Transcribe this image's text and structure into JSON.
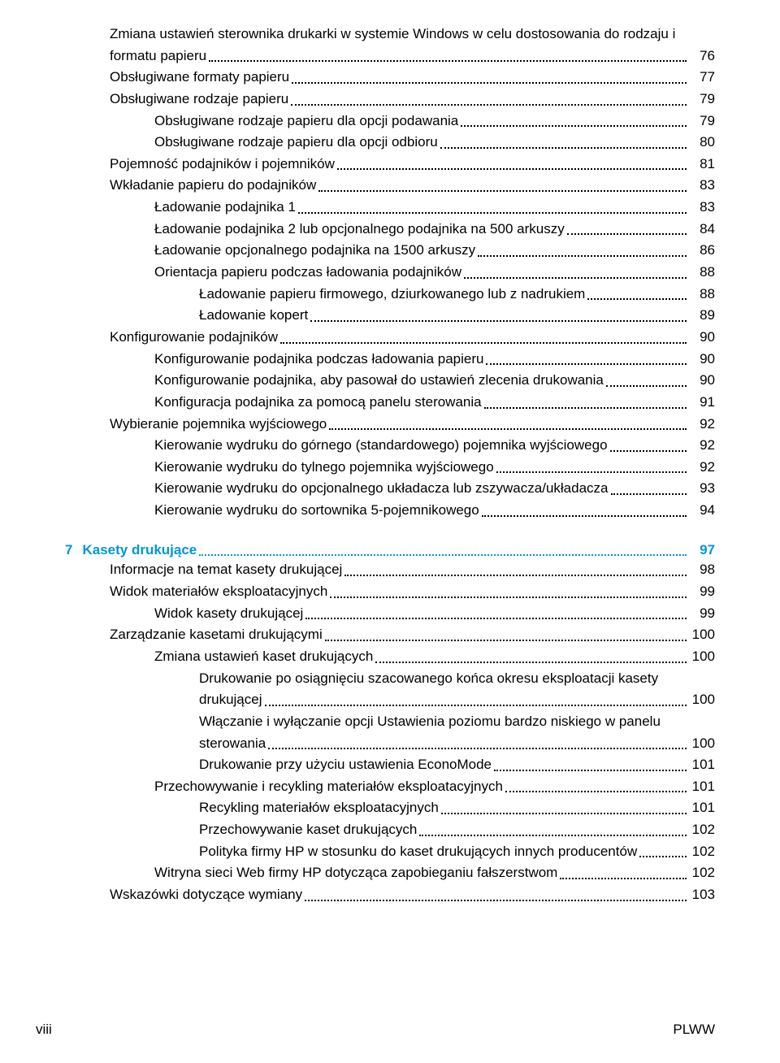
{
  "footer": {
    "left": "viii",
    "right": "PLWW"
  },
  "chapter": {
    "num": "7",
    "title": "Kasety drukujące",
    "page": "97"
  },
  "toc": [
    {
      "lvl": 1,
      "text": "Zmiana ustawień sterownika drukarki w systemie Windows w celu dostosowania do rodzaju i formatu papieru",
      "page": "76",
      "wrap": true
    },
    {
      "lvl": 1,
      "text": "Obsługiwane formaty papieru",
      "page": "77"
    },
    {
      "lvl": 1,
      "text": "Obsługiwane rodzaje papieru",
      "page": "79"
    },
    {
      "lvl": 2,
      "text": "Obsługiwane rodzaje papieru dla opcji podawania",
      "page": "79"
    },
    {
      "lvl": 2,
      "text": "Obsługiwane rodzaje papieru dla opcji odbioru",
      "page": "80"
    },
    {
      "lvl": 1,
      "text": "Pojemność podajników i pojemników",
      "page": "81"
    },
    {
      "lvl": 1,
      "text": "Wkładanie papieru do podajników",
      "page": "83"
    },
    {
      "lvl": 2,
      "text": "Ładowanie podajnika 1",
      "page": "83"
    },
    {
      "lvl": 2,
      "text": "Ładowanie podajnika 2 lub opcjonalnego podajnika na 500 arkuszy",
      "page": "84"
    },
    {
      "lvl": 2,
      "text": "Ładowanie opcjonalnego podajnika na 1500 arkuszy",
      "page": "86"
    },
    {
      "lvl": 2,
      "text": "Orientacja papieru podczas ładowania podajników",
      "page": "88"
    },
    {
      "lvl": 3,
      "text": "Ładowanie papieru firmowego, dziurkowanego lub z nadrukiem",
      "page": "88"
    },
    {
      "lvl": 3,
      "text": "Ładowanie kopert",
      "page": "89"
    },
    {
      "lvl": 1,
      "text": "Konfigurowanie podajników",
      "page": "90"
    },
    {
      "lvl": 2,
      "text": "Konfigurowanie podajnika podczas ładowania papieru",
      "page": "90"
    },
    {
      "lvl": 2,
      "text": "Konfigurowanie podajnika, aby pasował do ustawień zlecenia drukowania",
      "page": "90"
    },
    {
      "lvl": 2,
      "text": "Konfiguracja podajnika za pomocą panelu sterowania",
      "page": "91"
    },
    {
      "lvl": 1,
      "text": "Wybieranie pojemnika wyjściowego",
      "page": "92"
    },
    {
      "lvl": 2,
      "text": "Kierowanie wydruku do górnego (standardowego) pojemnika wyjściowego",
      "page": "92"
    },
    {
      "lvl": 2,
      "text": "Kierowanie wydruku do tylnego pojemnika wyjściowego",
      "page": "92"
    },
    {
      "lvl": 2,
      "text": "Kierowanie wydruku do opcjonalnego układacza lub zszywacza/układacza",
      "page": "93"
    },
    {
      "lvl": 2,
      "text": "Kierowanie wydruku do sortownika 5-pojemnikowego",
      "page": "94"
    }
  ],
  "toc2": [
    {
      "lvl": 1,
      "text": "Informacje na temat kasety drukującej",
      "page": "98"
    },
    {
      "lvl": 1,
      "text": "Widok materiałów eksploatacyjnych",
      "page": "99"
    },
    {
      "lvl": 2,
      "text": "Widok kasety drukującej",
      "page": "99"
    },
    {
      "lvl": 1,
      "text": "Zarządzanie kasetami drukującymi",
      "page": "100"
    },
    {
      "lvl": 2,
      "text": "Zmiana ustawień kaset drukujących",
      "page": "100"
    },
    {
      "lvl": 3,
      "text": "Drukowanie po osiągnięciu szacowanego końca okresu eksploatacji kasety drukującej",
      "page": "100",
      "wrap": true
    },
    {
      "lvl": 3,
      "text": "Włączanie i wyłączanie opcji Ustawienia poziomu bardzo niskiego w panelu sterowania",
      "page": "100",
      "wrap": true
    },
    {
      "lvl": 3,
      "text": "Drukowanie przy użyciu ustawienia EconoMode",
      "page": "101"
    },
    {
      "lvl": 2,
      "text": "Przechowywanie i recykling materiałów eksploatacyjnych",
      "page": "101"
    },
    {
      "lvl": 3,
      "text": "Recykling materiałów eksploatacyjnych",
      "page": "101"
    },
    {
      "lvl": 3,
      "text": "Przechowywanie kaset drukujących",
      "page": "102"
    },
    {
      "lvl": 3,
      "text": "Polityka firmy HP w stosunku do kaset drukujących innych producentów",
      "page": "102"
    },
    {
      "lvl": 2,
      "text": "Witryna sieci Web firmy HP dotycząca zapobieganiu fałszerstwom",
      "page": "102"
    },
    {
      "lvl": 1,
      "text": "Wskazówki dotyczące wymiany",
      "page": "103"
    }
  ]
}
